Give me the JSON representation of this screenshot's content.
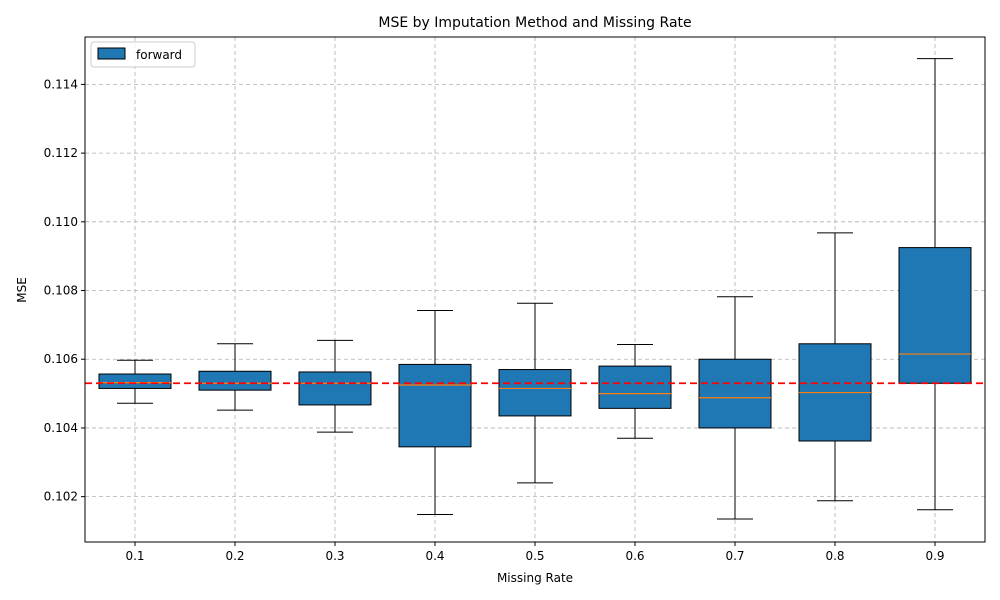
{
  "chart_data": {
    "type": "box",
    "title": "MSE by Imputation Method and Missing Rate",
    "xlabel": "Missing Rate",
    "ylabel": "MSE",
    "categories": [
      "0.1",
      "0.2",
      "0.3",
      "0.4",
      "0.5",
      "0.6",
      "0.7",
      "0.8",
      "0.9"
    ],
    "ylim": [
      0.10068,
      0.11538
    ],
    "yticks": [
      0.102,
      0.104,
      0.106,
      0.108,
      0.11,
      0.112,
      0.114
    ],
    "ytick_labels": [
      "0.102",
      "0.104",
      "0.106",
      "0.108",
      "0.110",
      "0.112",
      "0.114"
    ],
    "grid": true,
    "legend_position": "top-left",
    "series": [
      {
        "name": "forward",
        "color": "#1f77b4",
        "median_color": "#ff7f0e",
        "boxes": [
          {
            "whisker_low": 0.10472,
            "q1": 0.10515,
            "median": 0.10532,
            "q3": 0.10557,
            "whisker_high": 0.10597
          },
          {
            "whisker_low": 0.10452,
            "q1": 0.1051,
            "median": 0.1053,
            "q3": 0.10565,
            "whisker_high": 0.10645
          },
          {
            "whisker_low": 0.10388,
            "q1": 0.10467,
            "median": 0.1053,
            "q3": 0.10563,
            "whisker_high": 0.10655
          },
          {
            "whisker_low": 0.10148,
            "q1": 0.10345,
            "median": 0.10525,
            "q3": 0.10585,
            "whisker_high": 0.10742
          },
          {
            "whisker_low": 0.1024,
            "q1": 0.10435,
            "median": 0.10515,
            "q3": 0.1057,
            "whisker_high": 0.10763
          },
          {
            "whisker_low": 0.1037,
            "q1": 0.10457,
            "median": 0.105,
            "q3": 0.1058,
            "whisker_high": 0.10643
          },
          {
            "whisker_low": 0.10135,
            "q1": 0.104,
            "median": 0.10488,
            "q3": 0.106,
            "whisker_high": 0.10782
          },
          {
            "whisker_low": 0.10188,
            "q1": 0.10362,
            "median": 0.10503,
            "q3": 0.10645,
            "whisker_high": 0.10968
          },
          {
            "whisker_low": 0.10162,
            "q1": 0.1053,
            "median": 0.10615,
            "q3": 0.10925,
            "whisker_high": 0.11475
          }
        ]
      }
    ],
    "reference_line": {
      "y": 0.1053,
      "color": "#ff0000",
      "style": "dashed"
    }
  }
}
